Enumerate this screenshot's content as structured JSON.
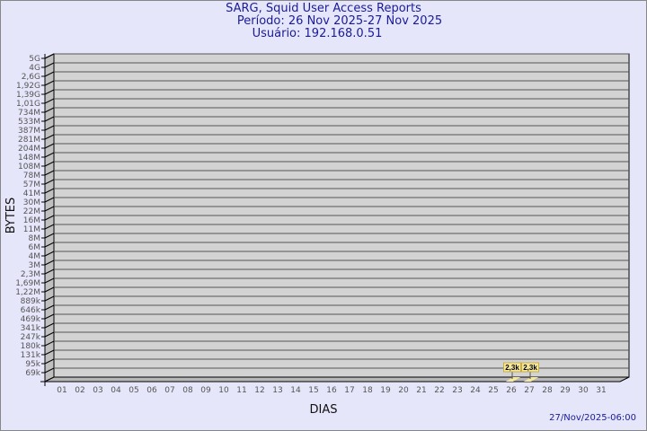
{
  "header": {
    "title": "SARG, Squid User Access Reports",
    "period": "Período: 26 Nov 2025-27 Nov 2025",
    "user": "Usuário: 192.168.0.51"
  },
  "footer": {
    "timestamp": "27/Nov/2025-06:00"
  },
  "chart_data": {
    "type": "bar",
    "title": "SARG, Squid User Access Reports",
    "xlabel": "DIAS",
    "ylabel": "BYTES",
    "y_scale": "log",
    "grid": true,
    "y_ticks": [
      "5G",
      "4G",
      "2,6G",
      "1,92G",
      "1,39G",
      "1,01G",
      "734M",
      "533M",
      "387M",
      "281M",
      "204M",
      "148M",
      "108M",
      "78M",
      "57M",
      "41M",
      "30M",
      "22M",
      "16M",
      "11M",
      "8M",
      "6M",
      "4M",
      "3M",
      "2,3M",
      "1,69M",
      "1,22M",
      "889k",
      "646k",
      "469k",
      "341k",
      "247k",
      "180k",
      "131k",
      "95k",
      "69k"
    ],
    "categories": [
      "01",
      "02",
      "03",
      "04",
      "05",
      "06",
      "07",
      "08",
      "09",
      "10",
      "11",
      "12",
      "13",
      "14",
      "15",
      "16",
      "17",
      "18",
      "19",
      "20",
      "21",
      "22",
      "23",
      "24",
      "25",
      "26",
      "27",
      "28",
      "29",
      "30",
      "31"
    ],
    "series": [
      {
        "values": [
          null,
          null,
          null,
          null,
          null,
          null,
          null,
          null,
          null,
          null,
          null,
          null,
          null,
          null,
          null,
          null,
          null,
          null,
          null,
          null,
          null,
          null,
          null,
          null,
          null,
          2300,
          2300,
          null,
          null,
          null,
          null
        ],
        "labels": {
          "26": "2,3k",
          "27": "2,3k"
        }
      }
    ],
    "colors": {
      "wall": "#d3d3d3",
      "bar": "#f5e79e",
      "label_bg": "#f5e79e",
      "label_border": "#c8b040",
      "title": "#1a1a9a",
      "background": "#e6e6fa"
    }
  }
}
